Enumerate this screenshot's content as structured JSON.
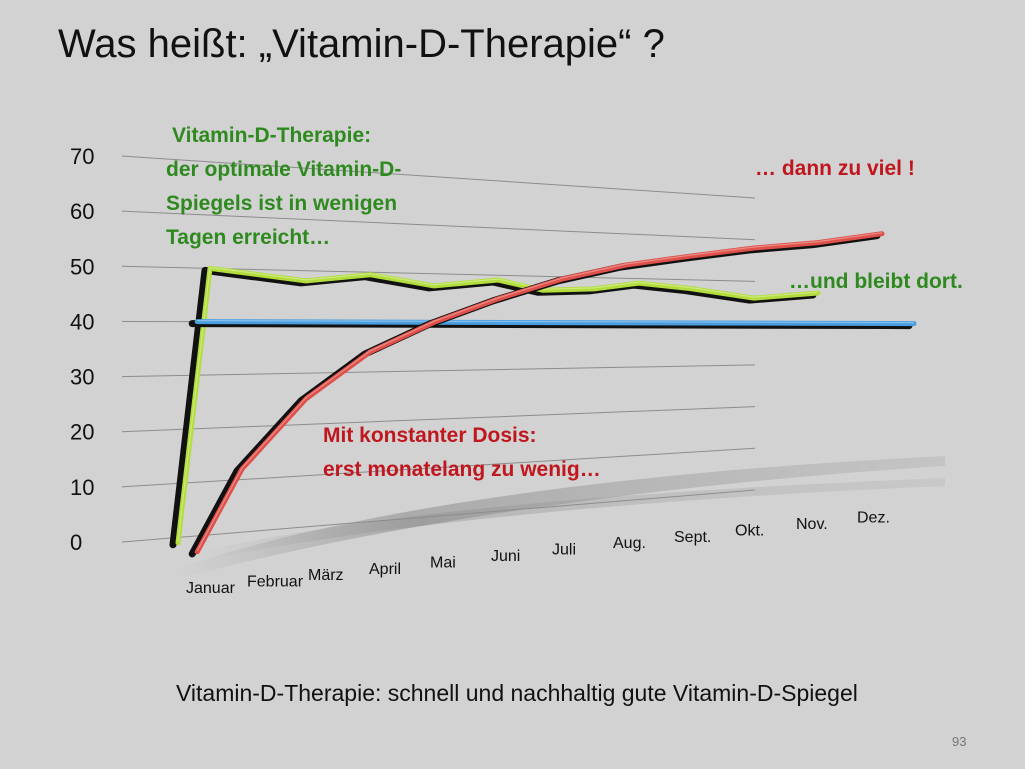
{
  "slide": {
    "title": "Was heißt: „Vitamin-D-Therapie“ ?",
    "footer": "Vitamin-D-Therapie: schnell und nachhaltig gute Vitamin-D-Spiegel",
    "page_number": "93"
  },
  "chart_data": {
    "type": "line",
    "style": "3d-perspective",
    "categories": [
      "Januar",
      "Februar",
      "März",
      "April",
      "Mai",
      "Juni",
      "Juli",
      "Aug.",
      "Sept.",
      "Okt.",
      "Nov.",
      "Dez."
    ],
    "ylim": [
      0,
      70
    ],
    "y_ticks": [
      "0",
      "10",
      "20",
      "30",
      "40",
      "50",
      "60",
      "70"
    ],
    "grid": true,
    "legend": "none",
    "series": [
      {
        "color": "#b3dd3c",
        "points": [
          [
            0,
            -1
          ],
          [
            0.5,
            50
          ],
          [
            2,
            48
          ],
          [
            3,
            49.5
          ],
          [
            4,
            47.5
          ],
          [
            5,
            49
          ],
          [
            5.7,
            47
          ],
          [
            6.5,
            47.5
          ],
          [
            7.2,
            49
          ],
          [
            8,
            48
          ],
          [
            9,
            46
          ],
          [
            10,
            47.5
          ]
        ]
      },
      {
        "color": "#4a9ee0",
        "points": [
          [
            0.3,
            40
          ],
          [
            11.5,
            40
          ]
        ]
      },
      {
        "color": "#e0504a",
        "points": [
          [
            0.3,
            -3
          ],
          [
            1,
            12
          ],
          [
            2,
            25
          ],
          [
            3,
            34
          ],
          [
            4,
            40
          ],
          [
            5,
            45
          ],
          [
            6,
            49.5
          ],
          [
            7,
            53
          ],
          [
            8,
            55.5
          ],
          [
            9,
            58
          ],
          [
            10,
            60
          ],
          [
            11,
            63
          ]
        ]
      }
    ],
    "annotations": [
      {
        "lines": [
          "Vitamin-D-Therapie:",
          "der optimale Vitamin-D-",
          "Spiegels ist in wenigen",
          "Tagen erreicht…"
        ],
        "color": "#2e8a1e"
      },
      {
        "lines": [
          "… dann zu viel !"
        ],
        "color": "#c0171e"
      },
      {
        "lines": [
          "…und bleibt dort."
        ],
        "color": "#2e8a1e"
      },
      {
        "lines": [
          "Mit konstanter Dosis:",
          "erst monatelang zu wenig…"
        ],
        "color": "#c0171e"
      }
    ]
  }
}
